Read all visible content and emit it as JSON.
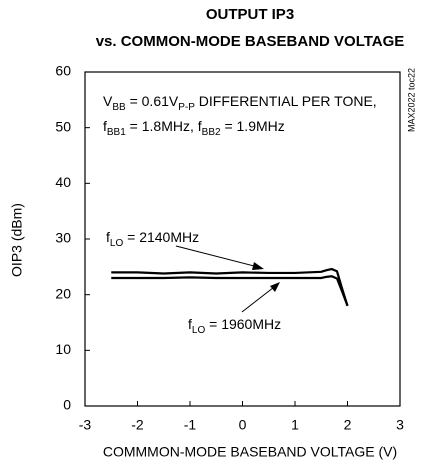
{
  "chart_data": {
    "type": "line",
    "title": [
      "OUTPUT IP3",
      "vs. COMMON-MODE BASEBAND VOLTAGE"
    ],
    "x_label": "COMMMON-MODE BASEBAND VOLTAGE (V)",
    "y_label": "OIP3 (dBm)",
    "side_note": "MAX2022 toc22",
    "xlim": [
      -3,
      3
    ],
    "xticks": [
      -3,
      -2,
      -1,
      0,
      1,
      2,
      3
    ],
    "ylim": [
      0,
      60
    ],
    "yticks": [
      0,
      10,
      20,
      30,
      40,
      50,
      60
    ],
    "grid": false,
    "x": [
      -2.5,
      -2,
      -1.5,
      -1,
      -0.5,
      0,
      0.5,
      1,
      1.5,
      1.6,
      1.7,
      1.8,
      1.9,
      2.0
    ],
    "series": [
      {
        "name_parts": [
          "f",
          "LO",
          " = 2140MHz"
        ],
        "color": "#000000",
        "values": [
          24,
          24,
          23.8,
          24,
          23.8,
          24,
          23.9,
          23.9,
          24.1,
          24.4,
          24.6,
          24.2,
          21,
          18
        ]
      },
      {
        "name_parts": [
          "f",
          "LO",
          " = 1960MHz"
        ],
        "color": "#000000",
        "values": [
          23,
          23,
          23,
          23.1,
          23,
          23,
          23,
          23,
          23,
          23.2,
          23.3,
          22.9,
          20.5,
          18
        ]
      }
    ],
    "annotations": [
      {
        "parts": [
          "V",
          "BB",
          " = 0.61V",
          "P-P",
          " DIFFERENTIAL PER TONE,"
        ]
      },
      {
        "parts": [
          "f",
          "BB1",
          " = 1.8MHz, f",
          "BB2",
          " = 1.9MHz"
        ]
      }
    ]
  }
}
